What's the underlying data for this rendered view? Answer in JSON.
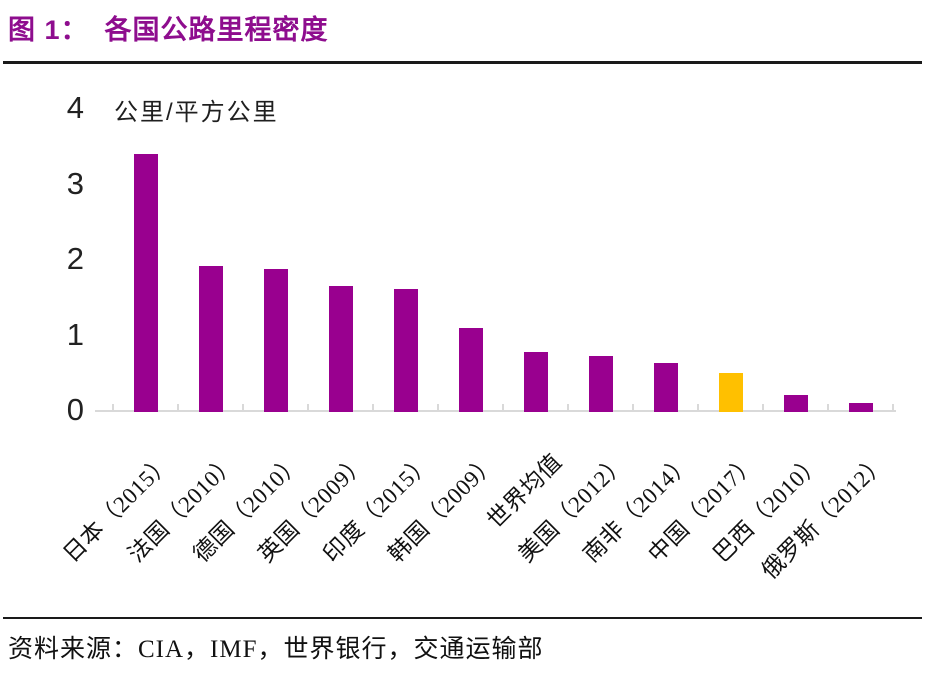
{
  "title": {
    "prefix": "图 1：",
    "text": "各国公路里程密度"
  },
  "chart_data": {
    "type": "bar",
    "title": "各国公路里程密度",
    "unit_label": "公里/平方公里",
    "categories": [
      "日本（2015）",
      "法国（2010）",
      "德国（2010）",
      "英国（2009）",
      "印度（2015）",
      "韩国（2009）",
      "世界均值",
      "美国（2012）",
      "南非（2014）",
      "中国（2017）",
      "巴西（2010）",
      "俄罗斯（2012）"
    ],
    "values": [
      3.4,
      1.91,
      1.87,
      1.65,
      1.6,
      1.09,
      0.77,
      0.72,
      0.62,
      0.49,
      0.2,
      0.09
    ],
    "highlight_index": 9,
    "y_ticks": [
      0,
      1,
      2,
      3,
      4
    ],
    "ylim": [
      0,
      4
    ],
    "grid": false,
    "legend": "none",
    "colors": {
      "bar": "#99008F",
      "highlight": "#FFC000",
      "axis": "#D9D9D9",
      "title": "#8E0D8E"
    }
  },
  "source": {
    "text": "资料来源：CIA，IMF，世界银行，交通运输部"
  }
}
